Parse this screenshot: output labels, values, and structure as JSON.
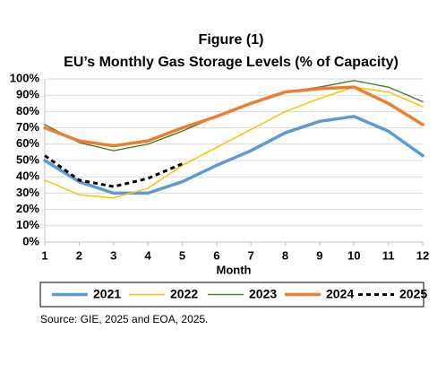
{
  "chart_data": {
    "type": "line",
    "title": "Figure (1)",
    "subtitle": "EU’s Monthly Gas Storage Levels (% of Capacity)",
    "x_label": "Month",
    "x": [
      1,
      2,
      3,
      4,
      5,
      6,
      7,
      8,
      9,
      10,
      11,
      12
    ],
    "xlim": [
      1,
      12
    ],
    "xticks": [
      1,
      2,
      3,
      4,
      5,
      6,
      7,
      8,
      9,
      10,
      11,
      12
    ],
    "ylim": [
      0,
      100
    ],
    "yticks": [
      {
        "value": 0,
        "label": "0%"
      },
      {
        "value": 10,
        "label": "10%"
      },
      {
        "value": 20,
        "label": "20%"
      },
      {
        "value": 30,
        "label": "30%"
      },
      {
        "value": 40,
        "label": "40%"
      },
      {
        "value": 50,
        "label": "50%"
      },
      {
        "value": 60,
        "label": "60%"
      },
      {
        "value": 70,
        "label": "70%"
      },
      {
        "value": 80,
        "label": "80%"
      },
      {
        "value": 90,
        "label": "90%"
      },
      {
        "value": 100,
        "label": "100%"
      }
    ],
    "grid": true,
    "legend": "bottom",
    "series": [
      {
        "name": "2021",
        "color": "#5b9bd5",
        "linewidth": 3.5,
        "values": [
          50,
          37,
          30,
          30,
          37,
          47,
          56,
          67,
          74,
          77,
          68,
          53
        ]
      },
      {
        "name": "2022",
        "color": "#ffc000",
        "linewidth": 1.5,
        "values": [
          38,
          29,
          27,
          33,
          47,
          58,
          69,
          80,
          88,
          95,
          92,
          83
        ]
      },
      {
        "name": "2023",
        "color": "#548235",
        "linewidth": 1.5,
        "values": [
          72,
          61,
          56,
          60,
          68,
          77,
          85,
          92,
          95,
          99,
          95,
          86
        ]
      },
      {
        "name": "2024",
        "color": "#ed7d31",
        "linewidth": 3.5,
        "values": [
          70,
          62,
          59,
          62,
          70,
          77,
          85,
          92,
          94,
          95,
          85,
          72
        ]
      },
      {
        "name": "2025",
        "color": "#000000",
        "linewidth": 3,
        "dashed": true,
        "values": [
          53,
          38,
          34,
          39,
          48,
          null,
          null,
          null,
          null,
          null,
          null,
          null
        ]
      }
    ],
    "source": "Source: GIE, 2025 and EOA, 2025."
  }
}
